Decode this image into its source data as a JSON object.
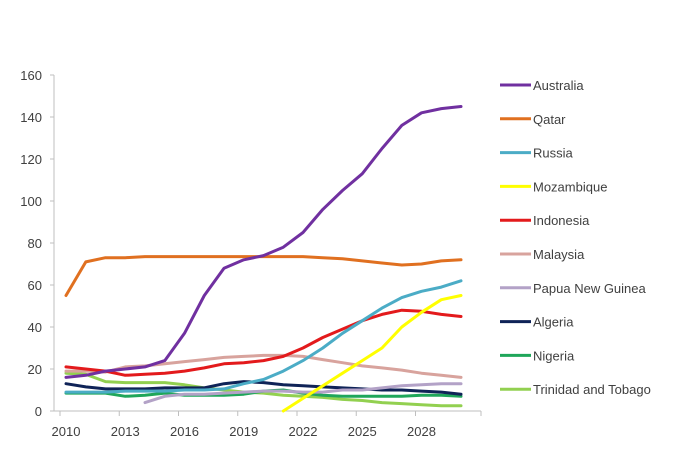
{
  "chart_data": {
    "type": "line",
    "title": "",
    "xlabel": "",
    "ylabel": "",
    "ylim": [
      0,
      160
    ],
    "xlim": [
      2010,
      2030
    ],
    "yticks": [
      0,
      20,
      40,
      60,
      80,
      100,
      120,
      140,
      160
    ],
    "xticks": [
      2010,
      2013,
      2016,
      2019,
      2022,
      2025,
      2028
    ],
    "grid": false,
    "legend_position": "right",
    "x": [
      2010,
      2011,
      2012,
      2013,
      2014,
      2015,
      2016,
      2017,
      2018,
      2019,
      2020,
      2021,
      2022,
      2023,
      2024,
      2025,
      2026,
      2027,
      2028,
      2029,
      2030
    ],
    "series": [
      {
        "name": "Australia",
        "color": "#7030a0",
        "values": [
          16,
          17,
          19,
          20,
          21,
          24,
          37,
          55,
          68,
          72,
          74,
          78,
          85,
          96,
          105,
          113,
          125,
          136,
          142,
          144,
          145
        ]
      },
      {
        "name": "Qatar",
        "color": "#e07020",
        "values": [
          55,
          71,
          73,
          73,
          73.5,
          73.5,
          73.5,
          73.5,
          73.5,
          73.5,
          73.5,
          73.5,
          73.5,
          73,
          72.5,
          71.5,
          70.5,
          69.5,
          70,
          71.5,
          72
        ]
      },
      {
        "name": "Russia",
        "color": "#4bacc6",
        "values": [
          9,
          9,
          9,
          9.5,
          9.5,
          9.5,
          10,
          10,
          10.5,
          13,
          15,
          19,
          24,
          30,
          37,
          43,
          49,
          54,
          57,
          59,
          62
        ]
      },
      {
        "name": "Mozambique",
        "color": "#ffff00",
        "values": [
          null,
          null,
          null,
          null,
          null,
          null,
          null,
          null,
          null,
          null,
          null,
          0,
          6,
          12,
          18,
          24,
          30,
          40,
          47,
          53,
          55
        ]
      },
      {
        "name": "Indonesia",
        "color": "#e31a1c",
        "values": [
          21,
          20,
          19,
          17,
          17.5,
          18,
          19,
          20.5,
          22.5,
          23,
          24,
          26,
          30,
          35,
          39,
          43,
          46,
          48,
          47.5,
          46,
          45
        ]
      },
      {
        "name": "Malaysia",
        "color": "#d8a39d",
        "values": [
          19,
          19,
          18.5,
          21,
          21.5,
          22.5,
          23.5,
          24.5,
          25.5,
          26,
          26.5,
          26.5,
          26,
          24.5,
          23,
          21.5,
          20.5,
          19.5,
          18,
          17,
          16
        ]
      },
      {
        "name": "Papua New Guinea",
        "color": "#b3a2c7",
        "values": [
          null,
          null,
          null,
          null,
          4,
          7,
          8,
          8,
          8.5,
          9,
          9.5,
          9.5,
          9,
          9,
          10,
          10,
          11,
          12,
          12.5,
          13,
          13
        ]
      },
      {
        "name": "Algeria",
        "color": "#0f2357",
        "values": [
          13,
          11.5,
          10.5,
          10.5,
          10.5,
          11,
          11,
          11,
          13,
          14,
          13.5,
          12.5,
          12,
          11.5,
          11,
          10.5,
          10,
          10,
          9.5,
          9,
          8
        ]
      },
      {
        "name": "Nigeria",
        "color": "#1fa65a",
        "values": [
          8.5,
          8.5,
          8.5,
          7,
          7.5,
          8.5,
          7.5,
          7.5,
          7.5,
          8,
          9.5,
          10,
          8.5,
          7.5,
          7,
          7,
          7,
          7,
          7.5,
          7.5,
          7
        ]
      },
      {
        "name": "Trinidad and Tobago",
        "color": "#92d050",
        "values": [
          18,
          17.5,
          14,
          13.5,
          13.5,
          13.5,
          12.5,
          11,
          10,
          9,
          8.5,
          7.5,
          7,
          6.5,
          5.5,
          5,
          4,
          3.5,
          3,
          2.5,
          2.5
        ]
      }
    ]
  }
}
